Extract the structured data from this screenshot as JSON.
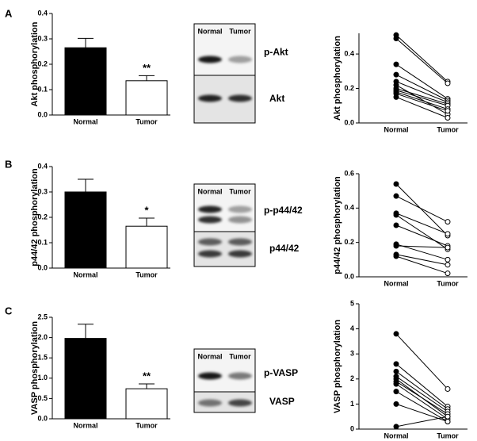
{
  "panel_labels": [
    "A",
    "B",
    "C"
  ],
  "blots": [
    {
      "lanes": [
        "Normal",
        "Tumor"
      ],
      "bands": [
        "p-Akt",
        "Akt"
      ]
    },
    {
      "lanes": [
        "Normal",
        "Tumor"
      ],
      "bands": [
        "p-p44/42",
        "p44/42"
      ]
    },
    {
      "lanes": [
        "Normal",
        "Tumor"
      ],
      "bands": [
        "p-VASP",
        "VASP"
      ]
    }
  ],
  "chart_data": [
    {
      "type": "bar",
      "y_label": "Akt phosphorylation",
      "categories": [
        "Normal",
        "Tumor"
      ],
      "values": [
        0.265,
        0.135
      ],
      "errors": [
        0.037,
        0.02
      ],
      "colors": [
        "#000000",
        "#ffffff"
      ],
      "annotations": [
        {
          "category": "Tumor",
          "text": "**"
        }
      ],
      "ylim": [
        0,
        0.4
      ],
      "yticks": [
        {
          "value": 0,
          "label": "0.0"
        },
        0.1,
        0.2,
        0.3,
        0.4
      ]
    },
    {
      "type": "paired",
      "y_label": "Akt phosphorylation",
      "categories": [
        "Normal",
        "Tumor"
      ],
      "marker_colors": [
        "#000000",
        "#ffffff"
      ],
      "series": [
        {
          "values": [
            0.51,
            0.24
          ]
        },
        {
          "values": [
            0.49,
            0.23
          ]
        },
        {
          "values": [
            0.34,
            0.14
          ]
        },
        {
          "values": [
            0.28,
            0.13
          ]
        },
        {
          "values": [
            0.24,
            0.12
          ]
        },
        {
          "values": [
            0.22,
            0.05
          ]
        },
        {
          "values": [
            0.2,
            0.11
          ]
        },
        {
          "values": [
            0.19,
            0.1
          ]
        },
        {
          "values": [
            0.18,
            0.08
          ]
        },
        {
          "values": [
            0.17,
            0.07
          ]
        },
        {
          "values": [
            0.15,
            0.03
          ]
        }
      ],
      "ylim": [
        0,
        0.52
      ],
      "yticks": [
        {
          "value": 0,
          "label": "0.0"
        },
        0.2,
        0.4
      ]
    },
    {
      "type": "bar",
      "y_label": "p44/42 phosphorylation",
      "categories": [
        "Normal",
        "Tumor"
      ],
      "values": [
        0.3,
        0.165
      ],
      "errors": [
        0.05,
        0.032
      ],
      "colors": [
        "#000000",
        "#ffffff"
      ],
      "annotations": [
        {
          "category": "Tumor",
          "text": "*"
        }
      ],
      "ylim": [
        0,
        0.4
      ],
      "yticks": [
        {
          "value": 0,
          "label": "0.0"
        },
        0.1,
        0.2,
        0.3,
        0.4
      ]
    },
    {
      "type": "paired",
      "y_label": "p44/42 phosphorylation",
      "categories": [
        "Normal",
        "Tumor"
      ],
      "marker_colors": [
        "#000000",
        "#ffffff"
      ],
      "series": [
        {
          "values": [
            0.54,
            0.24
          ]
        },
        {
          "values": [
            0.47,
            0.32
          ]
        },
        {
          "values": [
            0.37,
            0.25
          ]
        },
        {
          "values": [
            0.36,
            0.16
          ]
        },
        {
          "values": [
            0.3,
            0.18
          ]
        },
        {
          "values": [
            0.19,
            0.1
          ]
        },
        {
          "values": [
            0.18,
            0.17
          ]
        },
        {
          "values": [
            0.13,
            0.07
          ]
        },
        {
          "values": [
            0.12,
            0.02
          ]
        }
      ],
      "ylim": [
        0,
        0.6
      ],
      "yticks": [
        {
          "value": 0,
          "label": "0.0"
        },
        0.2,
        0.4,
        0.6
      ]
    },
    {
      "type": "bar",
      "y_label": "VASP phosphorylation",
      "categories": [
        "Normal",
        "Tumor"
      ],
      "values": [
        1.98,
        0.74
      ],
      "errors": [
        0.35,
        0.12
      ],
      "colors": [
        "#000000",
        "#ffffff"
      ],
      "annotations": [
        {
          "category": "Tumor",
          "text": "**"
        }
      ],
      "ylim": [
        0,
        2.5
      ],
      "yticks": [
        {
          "value": 0,
          "label": "0.0"
        },
        0.5,
        {
          "value": 1,
          "label": "1.0"
        },
        1.5,
        {
          "value": 2,
          "label": "2.0"
        },
        2.5
      ]
    },
    {
      "type": "paired",
      "y_label": "VASP phosphorylation",
      "categories": [
        "Normal",
        "Tumor"
      ],
      "marker_colors": [
        "#000000",
        "#ffffff"
      ],
      "series": [
        {
          "values": [
            3.8,
            1.6
          ]
        },
        {
          "values": [
            2.6,
            0.9
          ]
        },
        {
          "values": [
            2.3,
            0.8
          ]
        },
        {
          "values": [
            2.1,
            0.7
          ]
        },
        {
          "values": [
            2.0,
            0.5
          ]
        },
        {
          "values": [
            1.9,
            0.6
          ]
        },
        {
          "values": [
            1.8,
            0.4
          ]
        },
        {
          "values": [
            1.5,
            0.3
          ]
        },
        {
          "values": [
            1.0,
            0.3
          ]
        },
        {
          "values": [
            0.1,
            0.5
          ]
        }
      ],
      "ylim": [
        0,
        5
      ],
      "yticks": [
        0,
        1,
        2,
        3,
        4,
        5
      ]
    }
  ]
}
